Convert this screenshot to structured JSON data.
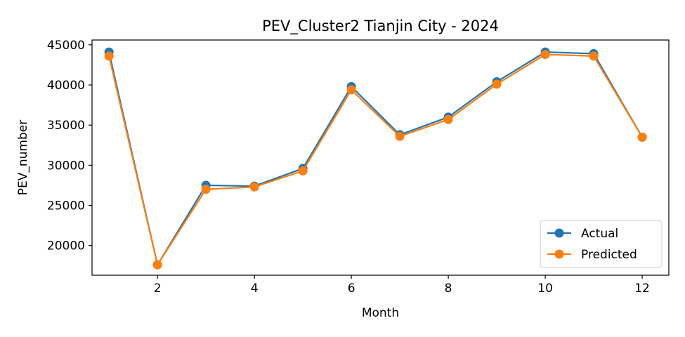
{
  "chart_data": {
    "type": "line",
    "title": "PEV_Cluster2 Tianjin City - 2024",
    "xlabel": "Month",
    "ylabel": "PEV_number",
    "x": [
      1,
      2,
      3,
      4,
      5,
      6,
      7,
      8,
      9,
      10,
      11,
      12
    ],
    "xlim": [
      0.65,
      12.55
    ],
    "ylim": [
      16300,
      45600
    ],
    "xticks": [
      2,
      4,
      6,
      8,
      10,
      12
    ],
    "yticks": [
      20000,
      25000,
      30000,
      35000,
      40000,
      45000
    ],
    "grid": false,
    "legend_position": "lower-right",
    "series": [
      {
        "name": "Actual",
        "color": "#1f77b4",
        "marker": "circle",
        "values": [
          44100,
          17600,
          27500,
          27400,
          29600,
          39800,
          33800,
          36000,
          40400,
          44100,
          43900,
          33500
        ]
      },
      {
        "name": "Predicted",
        "color": "#ff7f0e",
        "marker": "circle",
        "values": [
          43600,
          17600,
          27000,
          27300,
          29300,
          39400,
          33600,
          35700,
          40100,
          43800,
          43600,
          33500
        ]
      }
    ]
  }
}
